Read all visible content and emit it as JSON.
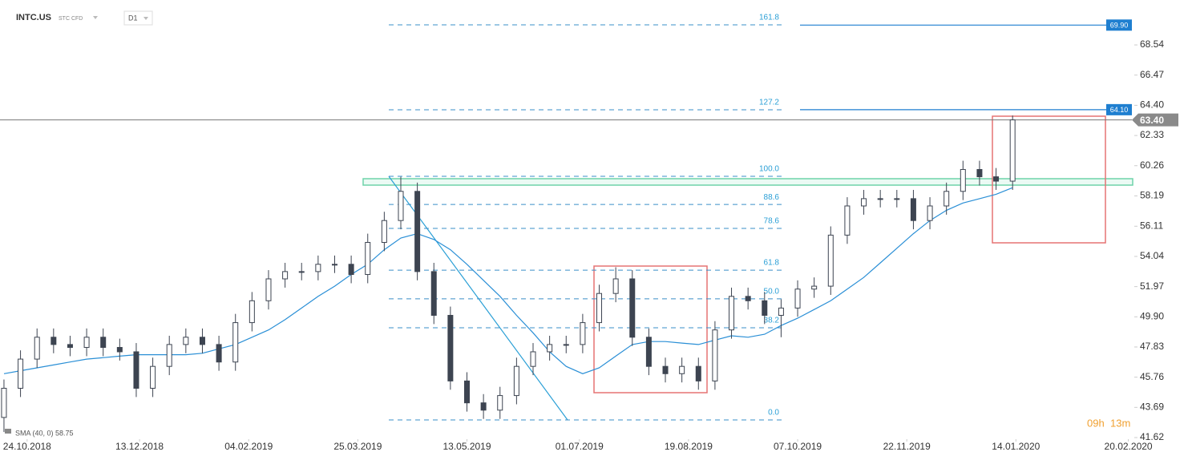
{
  "header": {
    "symbol": "INTC.US",
    "kind": "STC CFD",
    "interval": "D1"
  },
  "indicator_label": "SMA (40, 0) 58.75",
  "timer": {
    "hours": "09h",
    "minutes": "13m"
  },
  "chart_data": {
    "type": "candlestick",
    "x": [
      0,
      5,
      10,
      15,
      20,
      25,
      30,
      35,
      40,
      45,
      50,
      55,
      60,
      65,
      70,
      75,
      80,
      85,
      90,
      95,
      100,
      105,
      110,
      115,
      120,
      125,
      130,
      135,
      140,
      145,
      150,
      155,
      160,
      165,
      170,
      175,
      180,
      185,
      190,
      195,
      200,
      205,
      210,
      215,
      220,
      225,
      230,
      235,
      240,
      245,
      250,
      255,
      260,
      265,
      270,
      275,
      280,
      285,
      290,
      295,
      300,
      305
    ],
    "candles": [
      [
        43,
        45.6,
        42,
        45
      ],
      [
        45,
        47.6,
        44.4,
        47
      ],
      [
        47,
        49.1,
        46.4,
        48.5
      ],
      [
        48.5,
        49.1,
        47.4,
        48
      ],
      [
        48,
        48.6,
        47.2,
        47.8
      ],
      [
        47.8,
        49.1,
        47.2,
        48.5
      ],
      [
        48.5,
        49.1,
        47.2,
        47.8
      ],
      [
        47.8,
        48.4,
        46.9,
        47.5
      ],
      [
        47.5,
        48.1,
        44.4,
        45
      ],
      [
        45,
        47.1,
        44.4,
        46.5
      ],
      [
        46.5,
        48.6,
        45.9,
        48
      ],
      [
        48,
        49.1,
        47.4,
        48.5
      ],
      [
        48.5,
        49.1,
        47.4,
        48
      ],
      [
        48,
        48.6,
        46.2,
        46.8
      ],
      [
        46.8,
        50.1,
        46.2,
        49.5
      ],
      [
        49.5,
        51.6,
        48.9,
        51
      ],
      [
        51,
        53.1,
        50.4,
        52.5
      ],
      [
        52.5,
        53.6,
        51.9,
        53
      ],
      [
        53,
        53.6,
        52.4,
        53
      ],
      [
        53,
        54.1,
        52.4,
        53.5
      ],
      [
        53.5,
        54.1,
        52.9,
        53.5
      ],
      [
        53.5,
        54.1,
        52.2,
        52.8
      ],
      [
        52.8,
        55.6,
        52.2,
        55
      ],
      [
        55,
        57.1,
        54.4,
        56.5
      ],
      [
        56.5,
        59.5,
        55.9,
        58.5
      ],
      [
        58.5,
        59.1,
        52.4,
        53
      ],
      [
        53,
        53.6,
        49.4,
        50
      ],
      [
        50,
        50.6,
        44.9,
        45.5
      ],
      [
        45.5,
        46.1,
        43.4,
        44
      ],
      [
        44,
        44.6,
        42.9,
        43.5
      ],
      [
        43.5,
        45.1,
        42.9,
        44.5
      ],
      [
        44.5,
        47.1,
        43.9,
        46.5
      ],
      [
        46.5,
        48.1,
        45.9,
        47.5
      ],
      [
        47.5,
        48.6,
        46.9,
        48
      ],
      [
        48,
        48.6,
        47.4,
        48
      ],
      [
        48,
        50.1,
        47.4,
        49.5
      ],
      [
        49.5,
        52.1,
        48.9,
        51.5
      ],
      [
        51.5,
        53.3,
        50.9,
        52.5
      ],
      [
        52.5,
        53.1,
        47.9,
        48.5
      ],
      [
        48.5,
        49.1,
        45.9,
        46.5
      ],
      [
        46.5,
        47.1,
        45.4,
        46
      ],
      [
        46,
        47.1,
        45.4,
        46.5
      ],
      [
        46.5,
        47.1,
        44.9,
        45.5
      ],
      [
        45.5,
        49.6,
        44.9,
        49
      ],
      [
        49,
        51.9,
        48.4,
        51.3
      ],
      [
        51.3,
        51.9,
        50.4,
        51
      ],
      [
        51,
        51.6,
        49.4,
        50
      ],
      [
        50,
        51.1,
        48.5,
        50.5
      ],
      [
        50.5,
        52.4,
        49.9,
        51.8
      ],
      [
        51.8,
        52.6,
        51.2,
        52
      ],
      [
        52,
        56.1,
        51.4,
        55.5
      ],
      [
        55.5,
        58.1,
        54.9,
        57.5
      ],
      [
        57.5,
        58.6,
        56.9,
        58
      ],
      [
        58,
        58.6,
        57.4,
        58
      ],
      [
        58,
        58.6,
        57.4,
        58
      ],
      [
        58,
        58.6,
        55.9,
        56.5
      ],
      [
        56.5,
        58.1,
        55.9,
        57.5
      ],
      [
        57.5,
        59.1,
        56.9,
        58.5
      ],
      [
        58.5,
        60.6,
        57.9,
        60
      ],
      [
        60,
        60.6,
        58.9,
        59.5
      ],
      [
        59.5,
        60.1,
        58.6,
        59.2
      ],
      [
        59.2,
        63.7,
        58.6,
        63.4
      ]
    ],
    "sma": {
      "values": [
        46,
        46.2,
        46.4,
        46.6,
        46.8,
        47,
        47.1,
        47.2,
        47.3,
        47.3,
        47.3,
        47.3,
        47.4,
        47.7,
        48,
        48.5,
        49,
        49.7,
        50.5,
        51.3,
        52,
        52.8,
        53.5,
        54.5,
        55.3,
        55.6,
        55.2,
        54.5,
        53.5,
        52.4,
        51.3,
        50,
        48.8,
        47.5,
        46.5,
        46,
        46.4,
        47.2,
        48,
        48.2,
        48.2,
        48.1,
        48,
        48.3,
        48.6,
        48.5,
        48.7,
        49.3,
        49.8,
        50.4,
        51,
        51.8,
        52.6,
        53.6,
        54.6,
        55.6,
        56.5,
        57.2,
        57.7,
        58,
        58.3,
        58.75
      ]
    },
    "xlim": [
      -1.2,
      341.8
    ],
    "xticks": [
      {
        "value": 7,
        "label": "24.10.2018"
      },
      {
        "value": 41,
        "label": "13.12.2018"
      },
      {
        "value": 74,
        "label": "04.02.2019"
      },
      {
        "value": 107,
        "label": "25.03.2019"
      },
      {
        "value": 140,
        "label": "13.05.2019"
      },
      {
        "value": 174,
        "label": "01.07.2019"
      },
      {
        "value": 207,
        "label": "19.08.2019"
      },
      {
        "value": 240,
        "label": "07.10.2019"
      },
      {
        "value": 273,
        "label": "22.11.2019"
      },
      {
        "value": 306,
        "label": "14.01.2020"
      },
      {
        "value": 340,
        "label": "20.02.2020"
      }
    ],
    "ylim": [
      41.62,
      71.62
    ],
    "yticks": [
      41.62,
      43.69,
      45.76,
      47.83,
      {
        "value": 49.9,
        "label": "49.90"
      },
      51.97,
      54.04,
      56.11,
      58.19,
      60.26,
      62.33,
      {
        "value": 64.4,
        "label": "64.40"
      },
      66.47,
      68.54
    ],
    "fib_levels": [
      {
        "label": "161.8",
        "value": 69.92
      },
      {
        "label": "127.2",
        "value": 64.09
      },
      {
        "label": "100.0",
        "value": 59.53
      },
      {
        "label": "88.6",
        "value": 57.6
      },
      {
        "label": "78.6",
        "value": 55.96
      },
      {
        "label": "61.8",
        "value": 53.1
      },
      {
        "label": "50.0",
        "value": 51.13
      },
      {
        "label": "38.2",
        "value": 49.15
      },
      {
        "label": "0.0",
        "value": 42.83
      }
    ],
    "price_lines": [
      {
        "value": 69.9,
        "label": "69.90"
      },
      {
        "value": 64.1,
        "label": "64.10"
      }
    ],
    "current_price": {
      "value": 63.4,
      "label": "63.40"
    }
  }
}
